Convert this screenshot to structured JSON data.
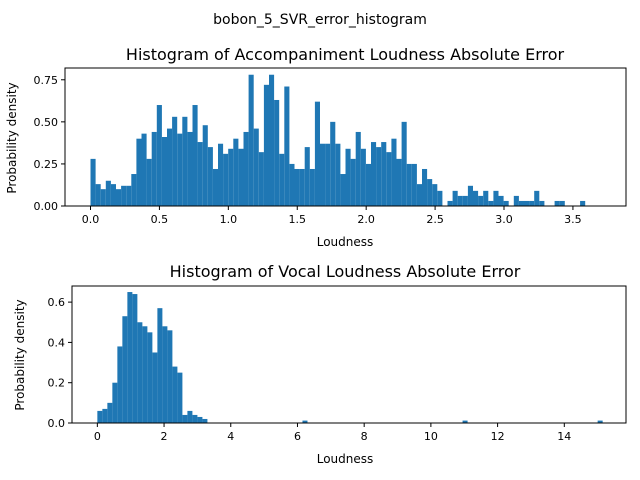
{
  "figure": {
    "suptitle": "bobon_5_SVR_error_histogram"
  },
  "colors": {
    "bar": "#1f77b4",
    "axis": "#000000",
    "background": "#ffffff"
  },
  "chart_data": [
    {
      "type": "bar",
      "title": "Histogram of Accompaniment Loudness Absolute Error",
      "xlabel": "Loudness",
      "ylabel": "Probability density",
      "bin_start": 0.0,
      "bin_width": 0.037,
      "xlim": [
        -0.185,
        3.885
      ],
      "ylim": [
        0,
        0.82
      ],
      "xticks": [
        0.0,
        0.5,
        1.0,
        1.5,
        2.0,
        2.5,
        3.0,
        3.5
      ],
      "xtick_labels": [
        "0.0",
        "0.5",
        "1.0",
        "1.5",
        "2.0",
        "2.5",
        "3.0",
        "3.5"
      ],
      "yticks": [
        0.0,
        0.25,
        0.5,
        0.75
      ],
      "ytick_labels": [
        "0.00",
        "0.25",
        "0.50",
        "0.75"
      ],
      "values": [
        0.28,
        0.13,
        0.1,
        0.15,
        0.13,
        0.1,
        0.12,
        0.12,
        0.19,
        0.4,
        0.43,
        0.28,
        0.44,
        0.6,
        0.41,
        0.46,
        0.53,
        0.43,
        0.53,
        0.44,
        0.6,
        0.38,
        0.48,
        0.35,
        0.22,
        0.37,
        0.31,
        0.34,
        0.4,
        0.34,
        0.44,
        0.78,
        0.46,
        0.32,
        0.72,
        0.78,
        0.63,
        0.31,
        0.71,
        0.25,
        0.22,
        0.22,
        0.35,
        0.22,
        0.62,
        0.37,
        0.37,
        0.5,
        0.37,
        0.19,
        0.34,
        0.28,
        0.44,
        0.34,
        0.25,
        0.38,
        0.35,
        0.38,
        0.32,
        0.4,
        0.28,
        0.5,
        0.25,
        0.25,
        0.13,
        0.22,
        0.16,
        0.13,
        0.09,
        0.0,
        0.03,
        0.09,
        0.06,
        0.06,
        0.12,
        0.09,
        0.06,
        0.09,
        0.03,
        0.09,
        0.06,
        0.03,
        0.0,
        0.06,
        0.03,
        0.03,
        0.03,
        0.09,
        0.03,
        0.0,
        0.0,
        0.03,
        0.03,
        0.0,
        0.0,
        0.0,
        0.03
      ]
    },
    {
      "type": "bar",
      "title": "Histogram of Vocal Loudness Absolute Error",
      "xlabel": "Loudness",
      "ylabel": "Probability density",
      "bin_start": 0.0,
      "bin_width": 0.15,
      "xlim": [
        -0.76,
        15.85
      ],
      "ylim": [
        0,
        0.68
      ],
      "xticks": [
        0,
        2,
        4,
        6,
        8,
        10,
        12,
        14
      ],
      "xtick_labels": [
        "0",
        "2",
        "4",
        "6",
        "8",
        "10",
        "12",
        "14"
      ],
      "yticks": [
        0.0,
        0.2,
        0.4,
        0.6
      ],
      "ytick_labels": [
        "0.0",
        "0.2",
        "0.4",
        "0.6"
      ],
      "values": [
        0.06,
        0.07,
        0.1,
        0.2,
        0.38,
        0.53,
        0.65,
        0.64,
        0.5,
        0.48,
        0.45,
        0.35,
        0.57,
        0.48,
        0.46,
        0.28,
        0.25,
        0.04,
        0.06,
        0.04,
        0.03,
        0.02
      ],
      "outliers": [
        {
          "x": 6.15,
          "value": 0.012
        },
        {
          "x": 10.95,
          "value": 0.012
        },
        {
          "x": 15.0,
          "value": 0.012
        }
      ]
    }
  ]
}
